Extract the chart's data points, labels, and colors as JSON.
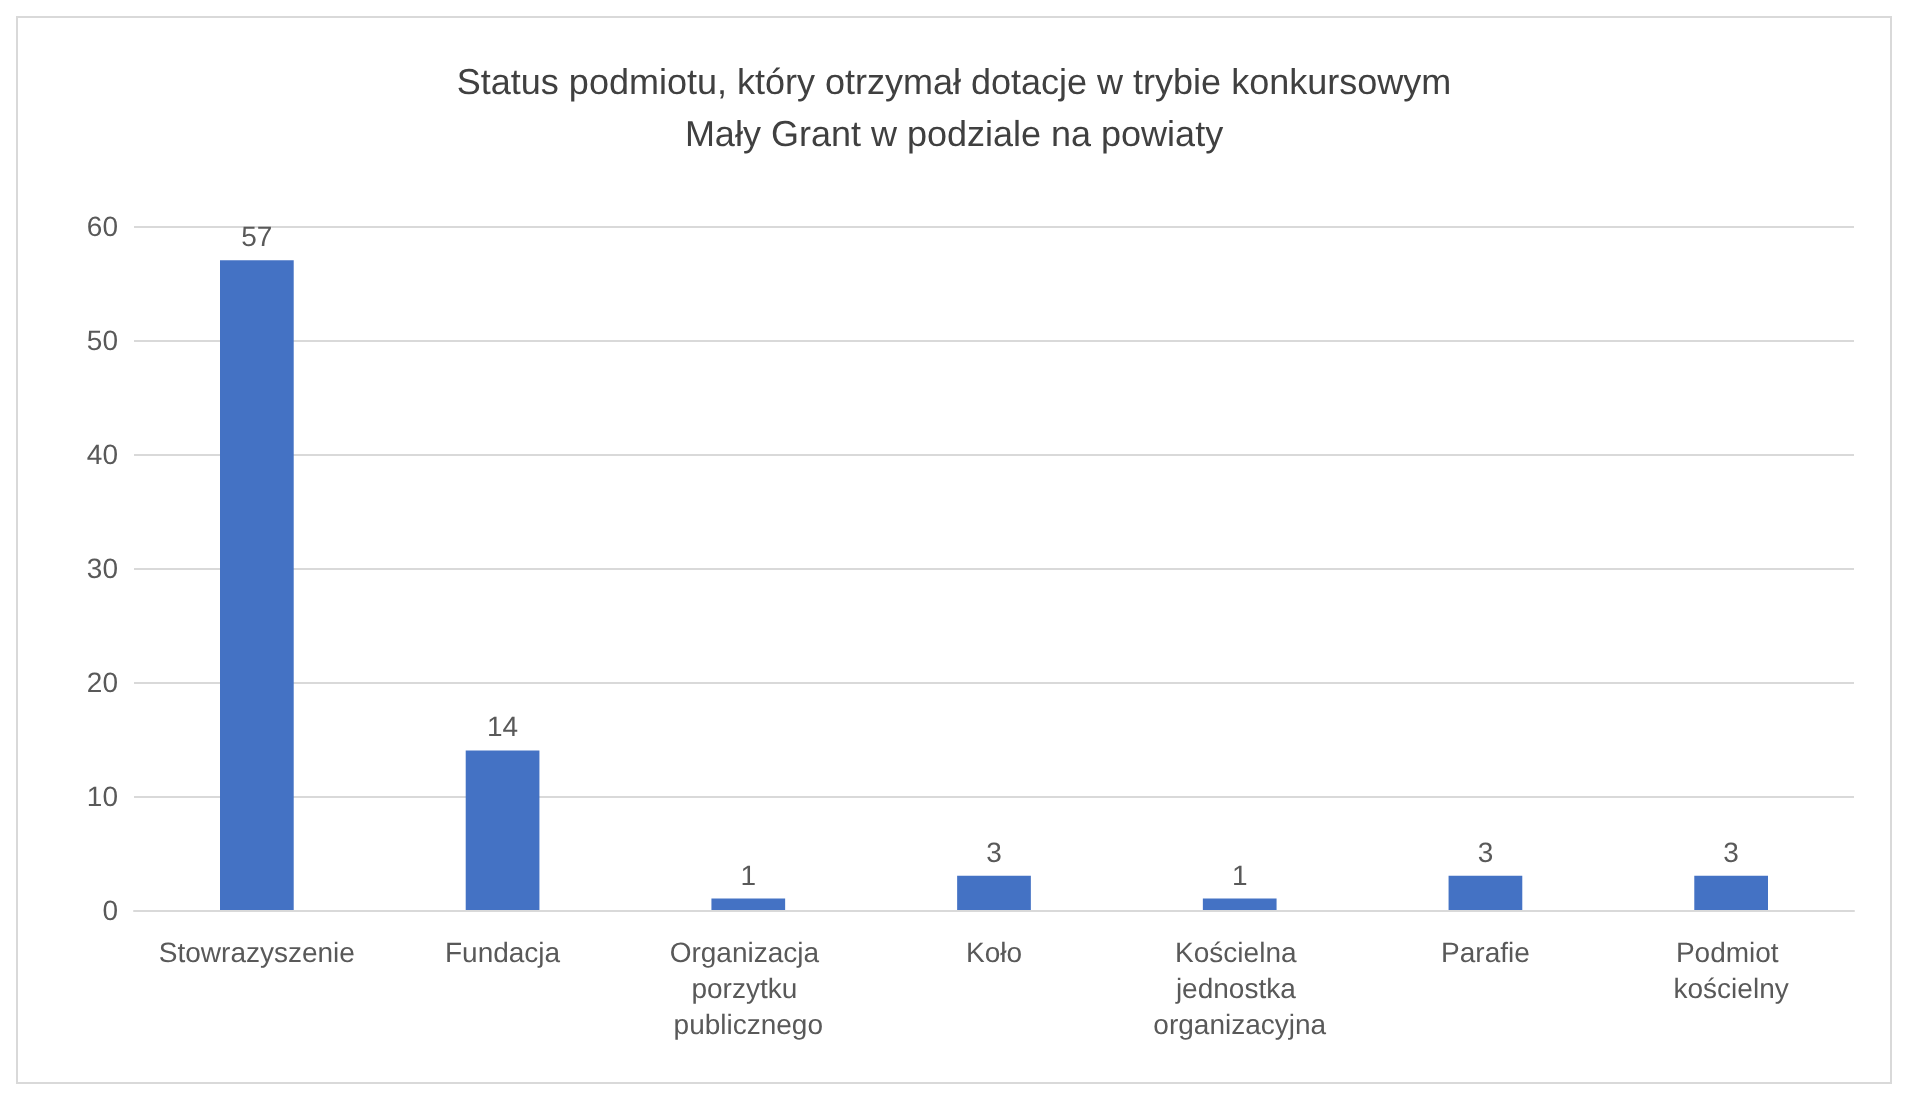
{
  "chart_data": {
    "type": "bar",
    "title": "Status podmiotu, który otrzymał dotacje w trybie konkursowym\nMały Grant w podziale na powiaty",
    "categories": [
      "Stowrazyszenie",
      "Fundacja",
      "Organizacja porzytku publicznego",
      "Koło",
      "Kościelna jednostka organizacyjna",
      "Parafie",
      "Podmiot kościelny"
    ],
    "values": [
      57,
      14,
      1,
      3,
      1,
      3,
      3
    ],
    "color": "#4472c4",
    "ylim": [
      0,
      60
    ],
    "yticks": [
      0,
      10,
      20,
      30,
      40,
      50,
      60
    ],
    "grid": "y",
    "data_labels": true
  }
}
